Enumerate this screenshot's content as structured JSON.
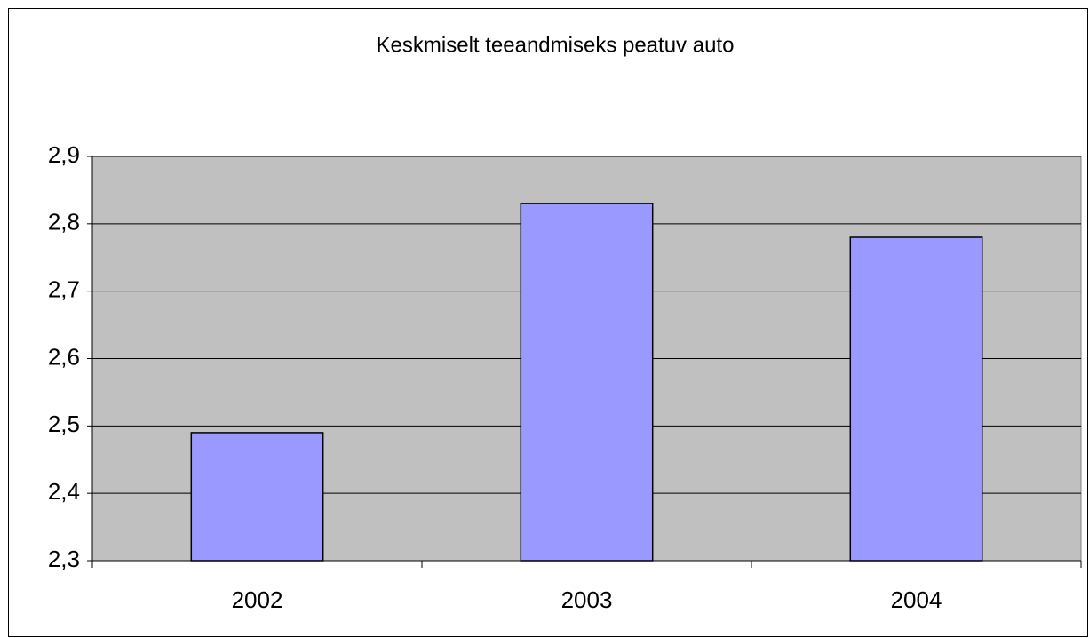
{
  "chart_data": {
    "type": "bar",
    "title": "Keskmiselt teeandmiseks peatuv auto",
    "categories": [
      "2002",
      "2003",
      "2004"
    ],
    "values": [
      2.49,
      2.83,
      2.78
    ],
    "color": "#9999ff",
    "ylim": [
      2.3,
      2.9
    ],
    "yticks": [
      {
        "value": 2.3,
        "label": "2,3"
      },
      {
        "value": 2.4,
        "label": "2,4"
      },
      {
        "value": 2.5,
        "label": "2,5"
      },
      {
        "value": 2.6,
        "label": "2,6"
      },
      {
        "value": 2.7,
        "label": "2,7"
      },
      {
        "value": 2.8,
        "label": "2,8"
      },
      {
        "value": 2.9,
        "label": "2,9"
      }
    ],
    "grid": true
  }
}
